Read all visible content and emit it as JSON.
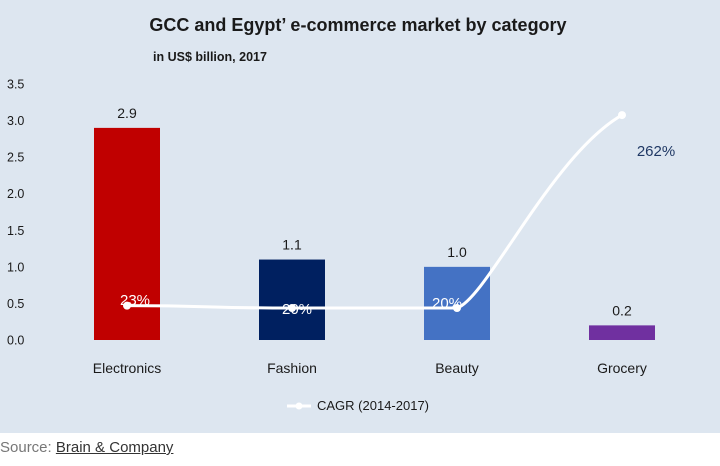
{
  "chart_data": {
    "type": "bar",
    "title": "GCC and Egypt’ e-commerce market by category",
    "subtitle": "in US$ billion, 2017",
    "categories": [
      "Electronics",
      "Fashion",
      "Beauty",
      "Grocery"
    ],
    "values": [
      2.9,
      1.1,
      1.0,
      0.2
    ],
    "value_labels": [
      "2.9",
      "1.1",
      "1.0",
      "0.2"
    ],
    "bar_colors": [
      "#c00000",
      "#002060",
      "#4472c4",
      "#7030a0"
    ],
    "ylim": [
      0,
      3.5
    ],
    "yticks": [
      "0.0",
      "0.5",
      "1.0",
      "1.5",
      "2.0",
      "2.5",
      "3.0",
      "3.5"
    ],
    "grid": false,
    "line_series": {
      "name": "CAGR (2014-2017)",
      "values": [
        0.23,
        0.2,
        0.2,
        2.62
      ],
      "labels": [
        "23%",
        "20%",
        "20%",
        "262%"
      ],
      "label_colors": [
        "#ffffff",
        "#ffffff",
        "#ffffff",
        "#1f3864"
      ],
      "color": "#ffffff"
    },
    "legend_position": "bottom"
  },
  "source": {
    "prefix": "Source: ",
    "link_text": "Brain & Company"
  }
}
